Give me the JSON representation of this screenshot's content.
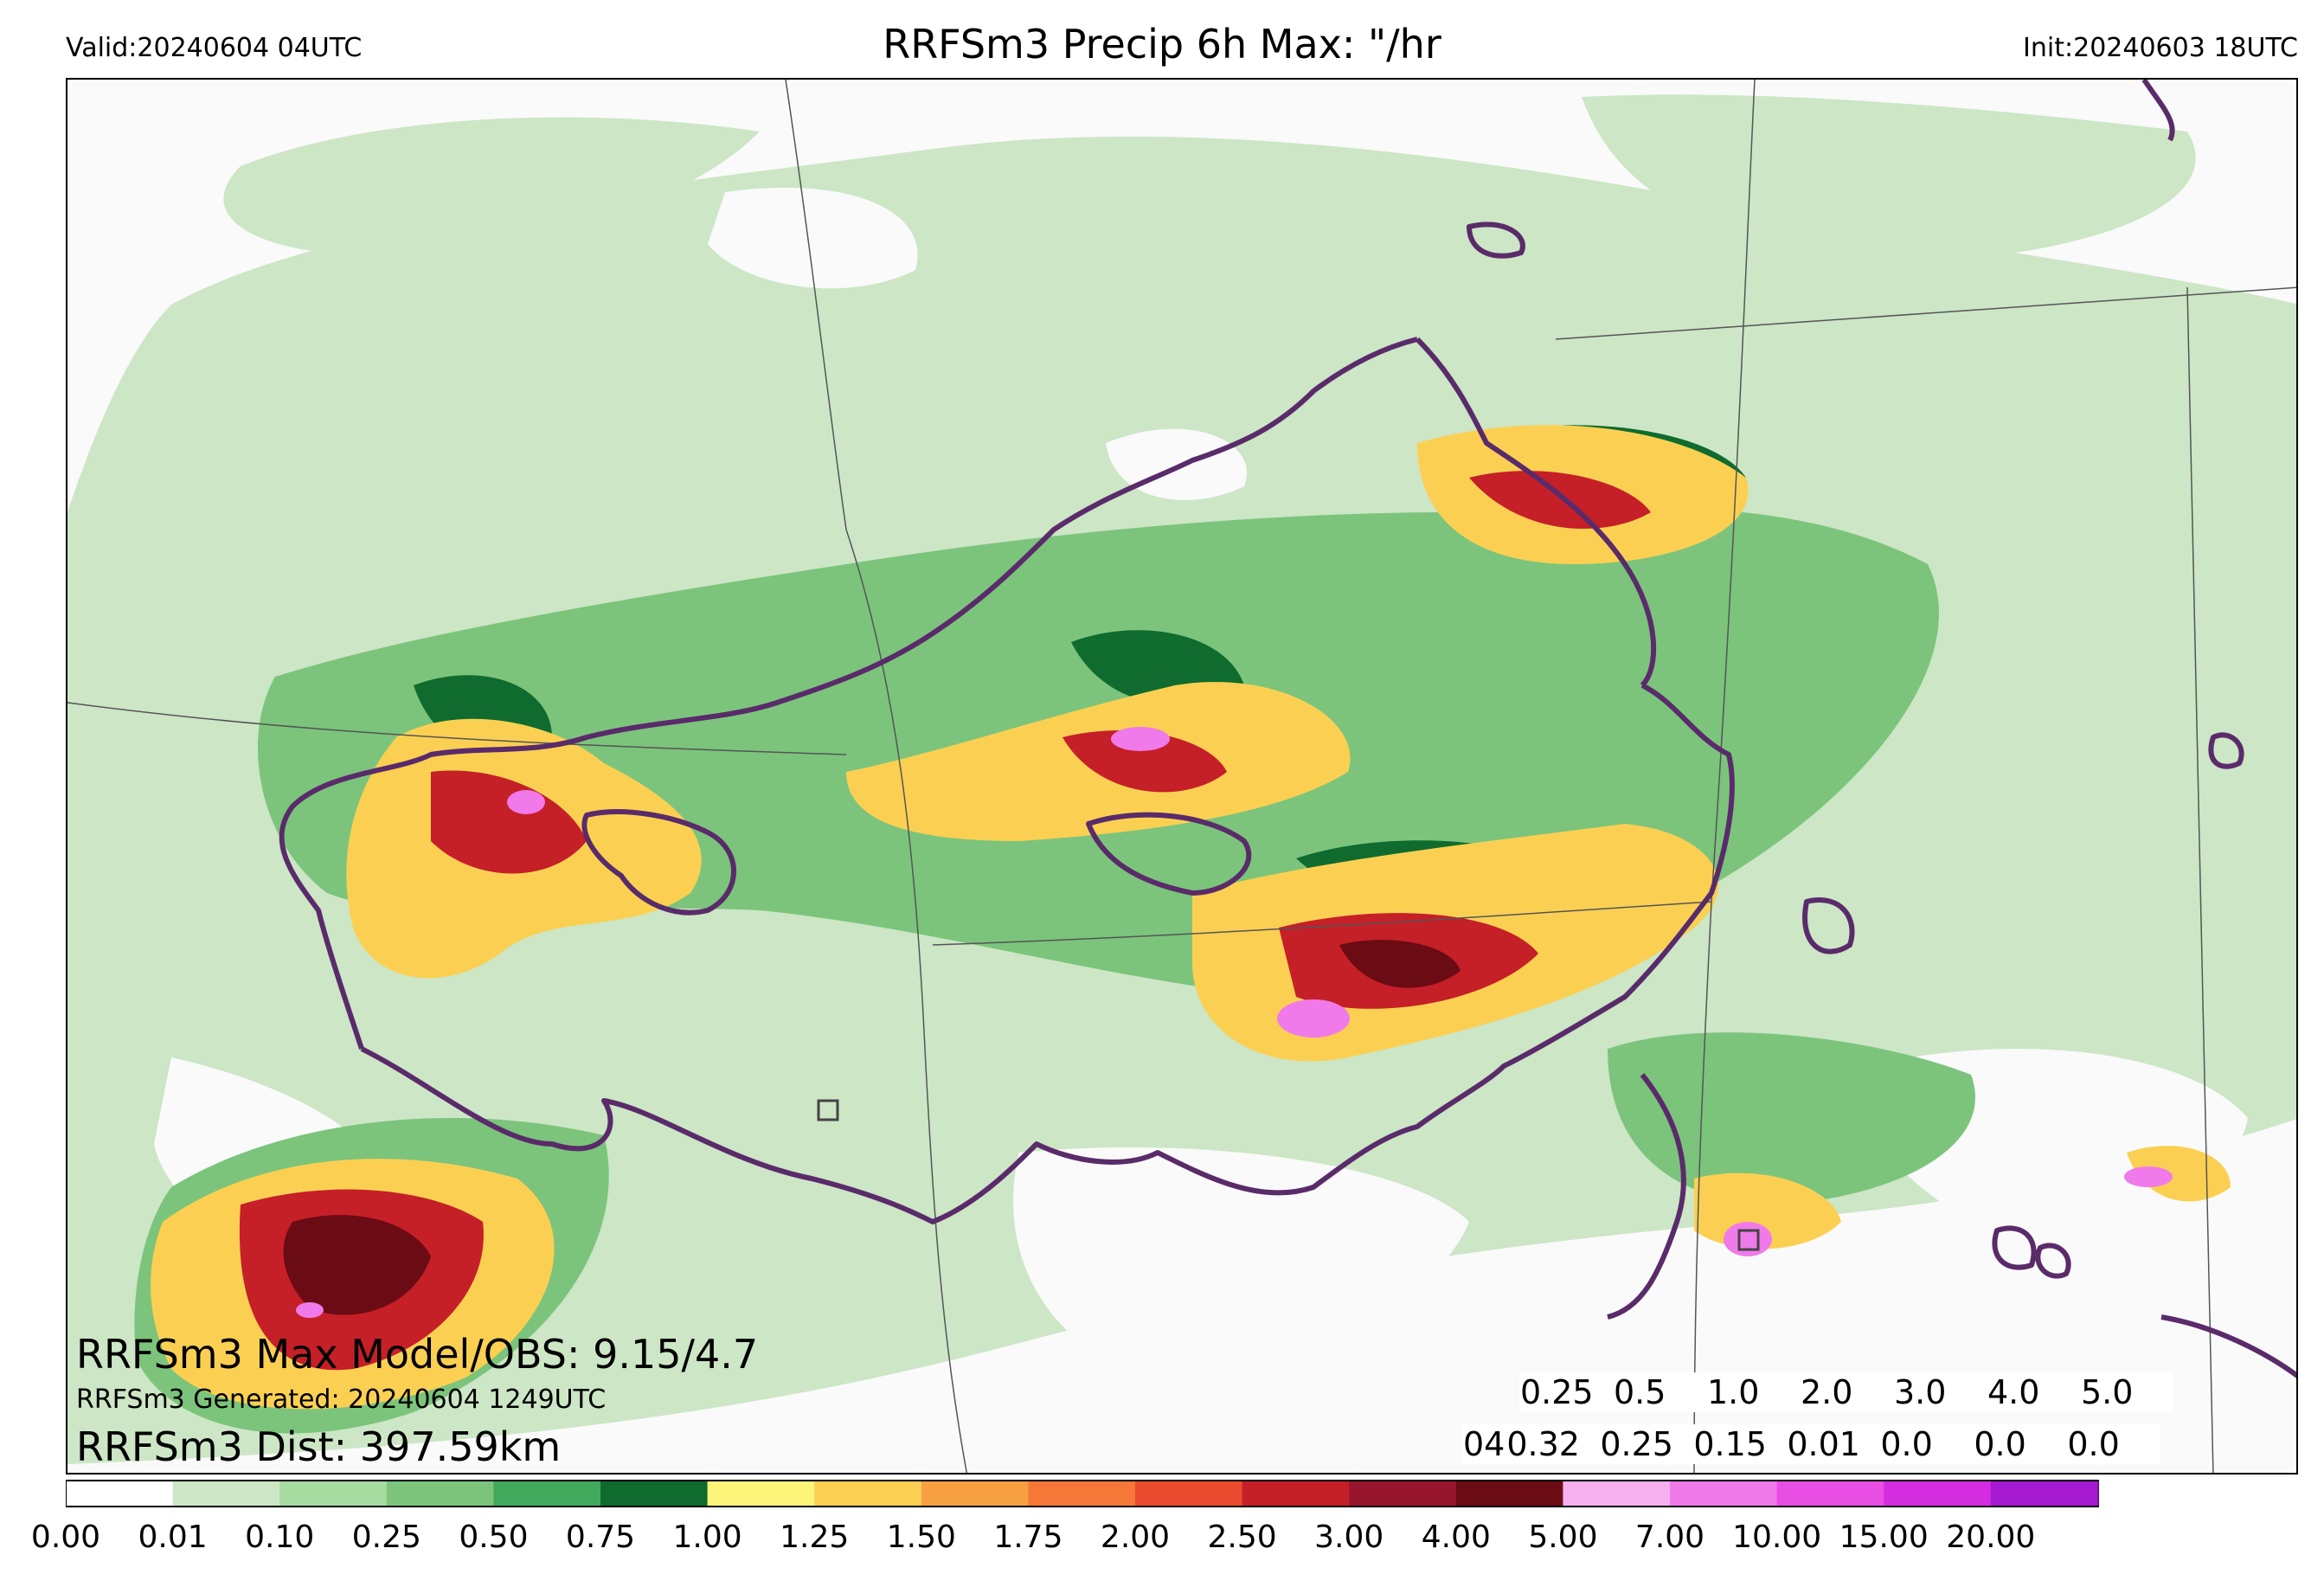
{
  "header": {
    "valid": "Valid:20240604 04UTC",
    "title": "RRFSm3 Precip 6h Max: \"/hr",
    "init": "Init:20240603 18UTC"
  },
  "stats": {
    "max_label": "RRFSm3 Max Model/OBS: 9.15/4.7",
    "generated": "RRFSm3 Generated: 20240604 1249UTC",
    "dist": "RRFSm3 Dist: 397.59km"
  },
  "threshold_table": {
    "hour": "04",
    "thresholds": [
      "0.25",
      "0.5",
      "1.0",
      "2.0",
      "3.0",
      "4.0",
      "5.0"
    ],
    "values": [
      "0.32",
      "0.25",
      "0.15",
      "0.01",
      "0.0",
      "0.0",
      "0.0"
    ]
  },
  "colorbar": {
    "ticks": [
      "0.00",
      "0.01",
      "0.10",
      "0.25",
      "0.50",
      "0.75",
      "1.00",
      "1.25",
      "1.50",
      "1.75",
      "2.00",
      "2.50",
      "3.00",
      "4.00",
      "5.00",
      "7.00",
      "10.00",
      "15.00",
      "20.00"
    ],
    "colors": [
      "#ffffff",
      "#cce6c6",
      "#a6dca0",
      "#7cc47c",
      "#41a95b",
      "#0f6b2e",
      "#fdf47a",
      "#fbd052",
      "#f7a042",
      "#f57838",
      "#ea4a2e",
      "#c51f28",
      "#981530",
      "#6b0b14",
      "#f6b0ef",
      "#f07ae9",
      "#e84ee4",
      "#d42de0",
      "#a51ad0",
      "#5e0f8a"
    ],
    "extend": "max"
  },
  "colors": {
    "outline_purple": "#5a2b6a",
    "boundary_line": "#555555"
  }
}
